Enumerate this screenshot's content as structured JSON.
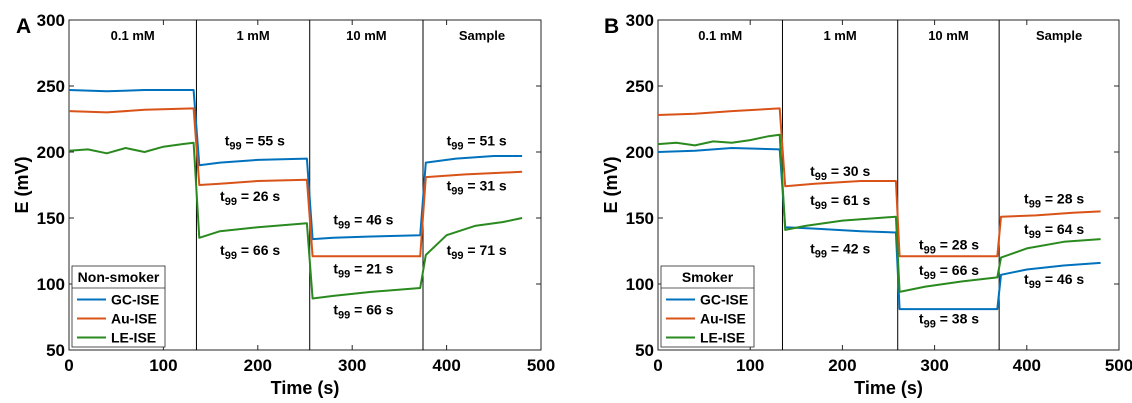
{
  "chart_data": [
    {
      "type": "line",
      "panel_label": "A",
      "xlabel": "Time (s)",
      "ylabel": "E (mV)",
      "xlim": [
        0,
        500
      ],
      "ylim": [
        50,
        300
      ],
      "xticks": [
        0,
        100,
        200,
        300,
        400,
        500
      ],
      "yticks": [
        50,
        100,
        150,
        200,
        250,
        300
      ],
      "grid": false,
      "segments": [
        {
          "label": "0.1 mM",
          "x_start": 0,
          "x_end": 135
        },
        {
          "label": "1 mM",
          "x_start": 135,
          "x_end": 255
        },
        {
          "label": "10 mM",
          "x_start": 255,
          "x_end": 375
        },
        {
          "label": "Sample",
          "x_start": 375,
          "x_end": 500
        }
      ],
      "legend": {
        "title": "Non-smoker",
        "position": "bottom-left"
      },
      "series": [
        {
          "name": "GC-ISE",
          "color": "#0072BD",
          "points": [
            [
              0,
              247
            ],
            [
              40,
              246
            ],
            [
              80,
              247
            ],
            [
              132,
              247
            ],
            [
              138,
              190
            ],
            [
              160,
              192
            ],
            [
              200,
              194
            ],
            [
              252,
              195
            ],
            [
              258,
              134
            ],
            [
              280,
              135
            ],
            [
              320,
              136
            ],
            [
              372,
              137
            ],
            [
              378,
              192
            ],
            [
              410,
              195
            ],
            [
              450,
              197
            ],
            [
              480,
              197
            ]
          ]
        },
        {
          "name": "Au-ISE",
          "color": "#D95319",
          "points": [
            [
              0,
              231
            ],
            [
              40,
              230
            ],
            [
              80,
              232
            ],
            [
              132,
              233
            ],
            [
              138,
              175
            ],
            [
              160,
              176
            ],
            [
              200,
              178
            ],
            [
              252,
              179
            ],
            [
              258,
              121
            ],
            [
              300,
              121
            ],
            [
              340,
              121
            ],
            [
              372,
              121
            ],
            [
              378,
              181
            ],
            [
              420,
              183
            ],
            [
              480,
              185
            ]
          ]
        },
        {
          "name": "LE-ISE",
          "color": "#2A8A1F",
          "points": [
            [
              0,
              201
            ],
            [
              20,
              202
            ],
            [
              40,
              199
            ],
            [
              60,
              203
            ],
            [
              80,
              200
            ],
            [
              100,
              204
            ],
            [
              120,
              206
            ],
            [
              132,
              207
            ],
            [
              138,
              135
            ],
            [
              160,
              140
            ],
            [
              200,
              143
            ],
            [
              252,
              146
            ],
            [
              258,
              89
            ],
            [
              280,
              91
            ],
            [
              320,
              94
            ],
            [
              372,
              97
            ],
            [
              378,
              122
            ],
            [
              400,
              137
            ],
            [
              430,
              144
            ],
            [
              460,
              147
            ],
            [
              480,
              150
            ]
          ]
        }
      ],
      "annotations": [
        {
          "text": "t99 = 55 s",
          "x": 165,
          "y": 205
        },
        {
          "text": "t99 = 26 s",
          "x": 160,
          "y": 163
        },
        {
          "text": "t99 = 66 s",
          "x": 160,
          "y": 122
        },
        {
          "text": "t99 = 46 s",
          "x": 280,
          "y": 145
        },
        {
          "text": "t99 = 21 s",
          "x": 280,
          "y": 108
        },
        {
          "text": "t99 = 66 s",
          "x": 280,
          "y": 77
        },
        {
          "text": "t99 = 51 s",
          "x": 400,
          "y": 205
        },
        {
          "text": "t99 = 31 s",
          "x": 400,
          "y": 171
        },
        {
          "text": "t99 = 71 s",
          "x": 400,
          "y": 122
        }
      ]
    },
    {
      "type": "line",
      "panel_label": "B",
      "xlabel": "Time (s)",
      "ylabel": "E (mV)",
      "xlim": [
        0,
        500
      ],
      "ylim": [
        50,
        300
      ],
      "xticks": [
        0,
        100,
        200,
        300,
        400,
        500
      ],
      "yticks": [
        50,
        100,
        150,
        200,
        250,
        300
      ],
      "grid": false,
      "segments": [
        {
          "label": "0.1 mM",
          "x_start": 0,
          "x_end": 135
        },
        {
          "label": "1 mM",
          "x_start": 135,
          "x_end": 260
        },
        {
          "label": "10 mM",
          "x_start": 260,
          "x_end": 370
        },
        {
          "label": "Sample",
          "x_start": 370,
          "x_end": 500
        }
      ],
      "legend": {
        "title": "Smoker",
        "position": "bottom-left"
      },
      "series": [
        {
          "name": "GC-ISE",
          "color": "#0072BD",
          "points": [
            [
              0,
              200
            ],
            [
              40,
              201
            ],
            [
              80,
              203
            ],
            [
              132,
              202
            ],
            [
              138,
              143
            ],
            [
              170,
              142
            ],
            [
              220,
              140
            ],
            [
              258,
              139
            ],
            [
              262,
              81
            ],
            [
              300,
              81
            ],
            [
              340,
              81
            ],
            [
              368,
              81
            ],
            [
              372,
              107
            ],
            [
              400,
              111
            ],
            [
              440,
              114
            ],
            [
              480,
              116
            ]
          ]
        },
        {
          "name": "Au-ISE",
          "color": "#D95319",
          "points": [
            [
              0,
              228
            ],
            [
              40,
              229
            ],
            [
              80,
              231
            ],
            [
              132,
              233
            ],
            [
              138,
              174
            ],
            [
              170,
              176
            ],
            [
              220,
              178
            ],
            [
              258,
              178
            ],
            [
              262,
              121
            ],
            [
              300,
              121
            ],
            [
              340,
              121
            ],
            [
              368,
              121
            ],
            [
              372,
              151
            ],
            [
              410,
              152
            ],
            [
              450,
              154
            ],
            [
              480,
              155
            ]
          ]
        },
        {
          "name": "LE-ISE",
          "color": "#2A8A1F",
          "points": [
            [
              0,
              206
            ],
            [
              20,
              207
            ],
            [
              40,
              205
            ],
            [
              60,
              208
            ],
            [
              80,
              207
            ],
            [
              100,
              209
            ],
            [
              120,
              212
            ],
            [
              132,
              213
            ],
            [
              138,
              141
            ],
            [
              160,
              144
            ],
            [
              200,
              148
            ],
            [
              258,
              151
            ],
            [
              262,
              94
            ],
            [
              290,
              98
            ],
            [
              330,
              102
            ],
            [
              368,
              105
            ],
            [
              372,
              120
            ],
            [
              400,
              127
            ],
            [
              440,
              132
            ],
            [
              480,
              134
            ]
          ]
        }
      ],
      "annotations": [
        {
          "text": "t99 = 30 s",
          "x": 165,
          "y": 182
        },
        {
          "text": "t99 = 61 s",
          "x": 165,
          "y": 160
        },
        {
          "text": "t99 = 42 s",
          "x": 165,
          "y": 123
        },
        {
          "text": "t99 = 28 s",
          "x": 283,
          "y": 126
        },
        {
          "text": "t99 = 66 s",
          "x": 283,
          "y": 107
        },
        {
          "text": "t99 = 38 s",
          "x": 283,
          "y": 70
        },
        {
          "text": "t99 = 28 s",
          "x": 397,
          "y": 161
        },
        {
          "text": "t99 = 64 s",
          "x": 397,
          "y": 138
        },
        {
          "text": "t99 = 46 s",
          "x": 397,
          "y": 100
        }
      ]
    }
  ]
}
